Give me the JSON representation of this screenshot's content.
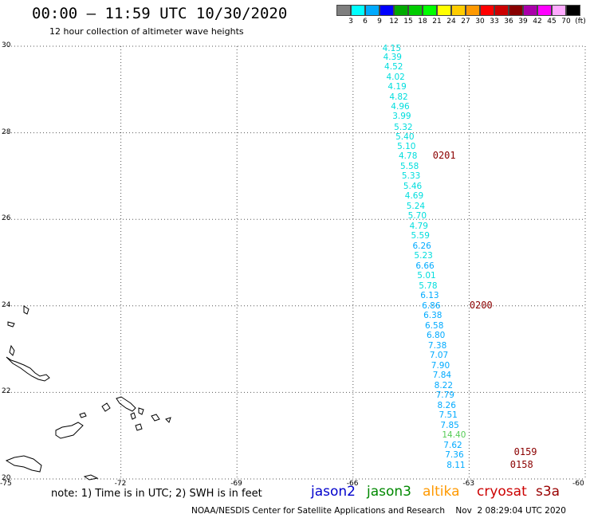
{
  "header": {
    "title": "00:00 – 11:59 UTC 10/30/2020",
    "subtitle": "12 hour collection of altimeter wave heights"
  },
  "colorbar": {
    "colors": [
      "#7f7f7f",
      "#00ffff",
      "#00aaff",
      "#0000ff",
      "#00aa00",
      "#00cc00",
      "#00ff00",
      "#ffff00",
      "#ffcc00",
      "#ff9900",
      "#ff0000",
      "#cc0000",
      "#880000",
      "#aa00aa",
      "#ff00ff",
      "#ffaaff",
      "#000000"
    ],
    "labels": [
      "3",
      "6",
      "9",
      "12",
      "15",
      "18",
      "21",
      "24",
      "27",
      "30",
      "33",
      "36",
      "39",
      "42",
      "45",
      "70"
    ],
    "unit": "(ft)"
  },
  "axes": {
    "lat_labels": [
      "30",
      "28",
      "26",
      "24",
      "22",
      "20"
    ],
    "lon_labels": [
      "-75",
      "-72",
      "-69",
      "-66",
      "-63",
      "-60"
    ]
  },
  "chart_data": {
    "type": "scatter",
    "xlabel": "",
    "ylabel": "",
    "xlim": [
      -75,
      -60
    ],
    "ylim": [
      20,
      30
    ],
    "series": [
      {
        "values": [
          {
            "lon": -65.2,
            "lat": 29.95,
            "swh": "4.15"
          },
          {
            "lon": -65.18,
            "lat": 29.75,
            "swh": "4.39"
          },
          {
            "lon": -65.15,
            "lat": 29.52,
            "swh": "4.52"
          },
          {
            "lon": -65.1,
            "lat": 29.29,
            "swh": "4.02"
          },
          {
            "lon": -65.06,
            "lat": 29.06,
            "swh": "4.19"
          },
          {
            "lon": -65.02,
            "lat": 28.83,
            "swh": "4.82"
          },
          {
            "lon": -64.98,
            "lat": 28.6,
            "swh": "4.96"
          },
          {
            "lon": -64.94,
            "lat": 28.38,
            "swh": "3.99"
          },
          {
            "lon": -64.9,
            "lat": 28.13,
            "swh": "5.32"
          },
          {
            "lon": -64.86,
            "lat": 27.9,
            "swh": "5.40"
          },
          {
            "lon": -64.82,
            "lat": 27.68,
            "swh": "5.10"
          },
          {
            "lon": -64.78,
            "lat": 27.45,
            "swh": "4.78"
          },
          {
            "lon": -64.74,
            "lat": 27.22,
            "swh": "5.58"
          },
          {
            "lon": -64.7,
            "lat": 26.99,
            "swh": "5.33"
          },
          {
            "lon": -64.66,
            "lat": 26.76,
            "swh": "5.46"
          },
          {
            "lon": -64.62,
            "lat": 26.53,
            "swh": "4.69"
          },
          {
            "lon": -64.58,
            "lat": 26.3,
            "swh": "5.24"
          },
          {
            "lon": -64.54,
            "lat": 26.07,
            "swh": "5.70"
          },
          {
            "lon": -64.5,
            "lat": 25.84,
            "swh": "4.79"
          },
          {
            "lon": -64.46,
            "lat": 25.61,
            "swh": "5.59"
          },
          {
            "lon": -64.42,
            "lat": 25.38,
            "swh": "6.26"
          },
          {
            "lon": -64.38,
            "lat": 25.15,
            "swh": "5.23"
          },
          {
            "lon": -64.34,
            "lat": 24.92,
            "swh": "6.66"
          },
          {
            "lon": -64.3,
            "lat": 24.69,
            "swh": "5.01"
          },
          {
            "lon": -64.26,
            "lat": 24.46,
            "swh": "5.78"
          },
          {
            "lon": -64.22,
            "lat": 24.23,
            "swh": "6.13"
          },
          {
            "lon": -64.18,
            "lat": 24.0,
            "swh": "6.86"
          },
          {
            "lon": -64.14,
            "lat": 23.77,
            "swh": "6.38"
          },
          {
            "lon": -64.1,
            "lat": 23.54,
            "swh": "6.58"
          },
          {
            "lon": -64.06,
            "lat": 23.31,
            "swh": "6.80"
          },
          {
            "lon": -64.02,
            "lat": 23.08,
            "swh": "7.38"
          },
          {
            "lon": -63.98,
            "lat": 22.85,
            "swh": "7.07"
          },
          {
            "lon": -63.94,
            "lat": 22.62,
            "swh": "7.90"
          },
          {
            "lon": -63.9,
            "lat": 22.39,
            "swh": "7.84"
          },
          {
            "lon": -63.86,
            "lat": 22.16,
            "swh": "8.22"
          },
          {
            "lon": -63.82,
            "lat": 21.93,
            "swh": "7.79"
          },
          {
            "lon": -63.78,
            "lat": 21.7,
            "swh": "8.26"
          },
          {
            "lon": -63.74,
            "lat": 21.47,
            "swh": "7.51"
          },
          {
            "lon": -63.7,
            "lat": 21.24,
            "swh": "7.85"
          },
          {
            "lon": -63.66,
            "lat": 21.01,
            "swh": "14.40"
          },
          {
            "lon": -63.62,
            "lat": 20.78,
            "swh": "7.62"
          },
          {
            "lon": -63.58,
            "lat": 20.55,
            "swh": "7.36"
          },
          {
            "lon": -63.54,
            "lat": 20.32,
            "swh": "8.11"
          }
        ]
      }
    ],
    "pass_labels": [
      {
        "text": "0201",
        "lon": -63.9,
        "lat": 27.45
      },
      {
        "text": "0200",
        "lon": -62.95,
        "lat": 24.0
      },
      {
        "text": "0159",
        "lon": -61.8,
        "lat": 20.6
      },
      {
        "text": "0158",
        "lon": -61.9,
        "lat": 20.32
      }
    ]
  },
  "legend": {
    "note": "note: 1) Time is in UTC; 2) SWH is in feet",
    "satellites": [
      {
        "name": "jason2",
        "color": "#0000cc"
      },
      {
        "name": "jason3",
        "color": "#008800"
      },
      {
        "name": "altika",
        "color": "#ff9900"
      },
      {
        "name": "cryosat",
        "color": "#cc0000"
      },
      {
        "name": "s3a",
        "color": "#990000"
      }
    ]
  },
  "footer": {
    "credit": "NOAA/NESDIS Center for Satellite Applications and Research    Nov  2 08:29:04 UTC 2020"
  },
  "colors": {
    "cyan": "#00dddd",
    "lightblue": "#00aaff",
    "green": "#55cc55",
    "pass_label": "#8b0000"
  }
}
